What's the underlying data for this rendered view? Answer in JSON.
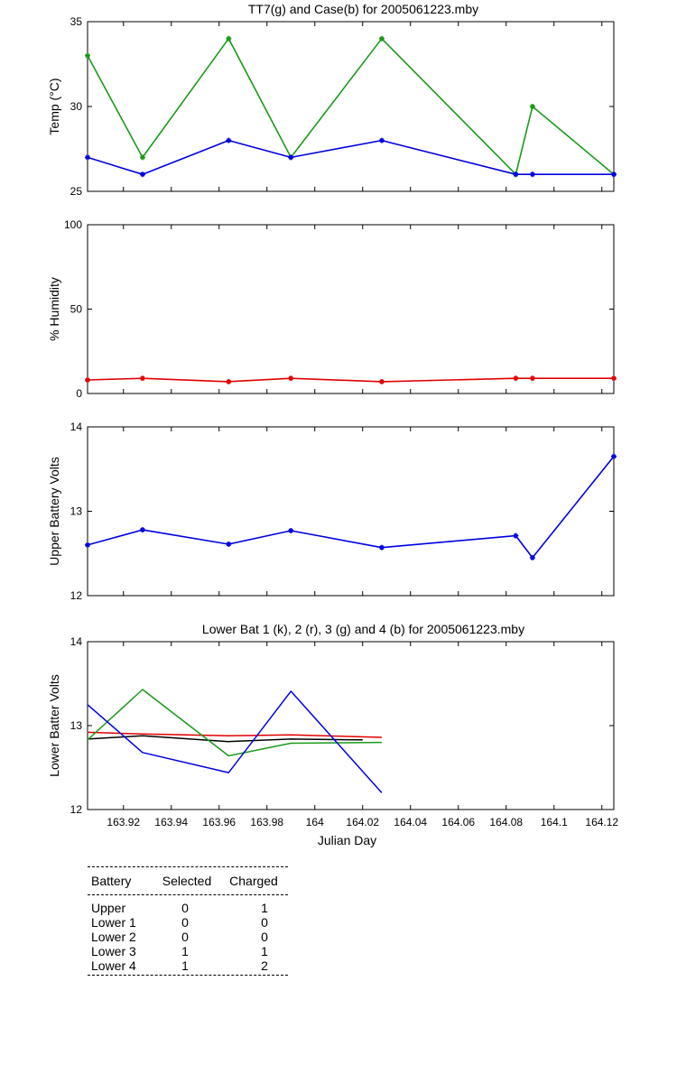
{
  "chart_data": [
    {
      "type": "line",
      "title": "TT7(g) and Case(b) for 2005061223.mby",
      "ylabel": "Temp  (°C)",
      "xlabel": "",
      "xlim": [
        163.905,
        164.125
      ],
      "ylim": [
        25,
        35
      ],
      "yticks": [
        25,
        30,
        35
      ],
      "markers": true,
      "series": [
        {
          "color": "#1a9a1a",
          "x": [
            163.905,
            163.928,
            163.964,
            163.99,
            164.028,
            164.084,
            164.091,
            164.125
          ],
          "y": [
            33,
            27,
            34,
            27,
            34,
            26,
            30,
            26
          ]
        },
        {
          "color": "#0000e0",
          "x": [
            163.905,
            163.928,
            163.964,
            163.99,
            164.028,
            164.084,
            164.091,
            164.125
          ],
          "y": [
            27,
            26,
            28,
            27,
            28,
            26,
            26,
            26
          ]
        }
      ]
    },
    {
      "type": "line",
      "title": "",
      "ylabel": "% Humidity",
      "xlabel": "",
      "xlim": [
        163.905,
        164.125
      ],
      "ylim": [
        0,
        100
      ],
      "yticks": [
        0,
        50,
        100
      ],
      "markers": true,
      "series": [
        {
          "color": "#e00000",
          "x": [
            163.905,
            163.928,
            163.964,
            163.99,
            164.028,
            164.084,
            164.091,
            164.125
          ],
          "y": [
            8,
            9,
            7,
            9,
            7,
            9,
            9,
            9
          ]
        }
      ]
    },
    {
      "type": "line",
      "title": "",
      "ylabel": "Upper Battery Volts",
      "xlabel": "",
      "xlim": [
        163.905,
        164.125
      ],
      "ylim": [
        12,
        14
      ],
      "yticks": [
        12,
        13,
        14
      ],
      "markers": true,
      "series": [
        {
          "color": "#0000e0",
          "x": [
            163.905,
            163.928,
            163.964,
            163.99,
            164.028,
            164.084,
            164.091,
            164.125
          ],
          "y": [
            12.6,
            12.78,
            12.61,
            12.77,
            12.57,
            12.71,
            12.45,
            13.65
          ]
        }
      ]
    },
    {
      "type": "line",
      "title": "Lower Bat 1 (k), 2 (r), 3 (g) and 4 (b) for 2005061223.mby",
      "ylabel": "Lower Batter Volts",
      "xlabel": "Julian Day",
      "xlim": [
        163.905,
        164.125
      ],
      "ylim": [
        12,
        14
      ],
      "yticks": [
        12,
        13,
        14
      ],
      "xticks": [
        163.92,
        163.94,
        163.96,
        163.98,
        164,
        164.02,
        164.04,
        164.06,
        164.08,
        164.1,
        164.12
      ],
      "xticklabels": [
        "163.92",
        "163.94",
        "163.96",
        "163.98",
        "164",
        "164.02",
        "164.04",
        "164.06",
        "164.08",
        "164.1",
        "164.12"
      ],
      "markers": false,
      "series": [
        {
          "color": "#000000",
          "x": [
            163.905,
            163.928,
            163.964,
            163.99,
            164.02
          ],
          "y": [
            12.84,
            12.88,
            12.81,
            12.84,
            12.83
          ]
        },
        {
          "color": "#e00000",
          "x": [
            163.905,
            163.928,
            163.964,
            163.99,
            164.028
          ],
          "y": [
            12.92,
            12.9,
            12.88,
            12.89,
            12.86
          ]
        },
        {
          "color": "#1a9a1a",
          "x": [
            163.905,
            163.928,
            163.964,
            163.99,
            164.028
          ],
          "y": [
            12.83,
            13.43,
            12.64,
            12.79,
            12.8
          ]
        },
        {
          "color": "#0000e0",
          "x": [
            163.905,
            163.928,
            163.964,
            163.99,
            164.028
          ],
          "y": [
            13.25,
            12.68,
            12.44,
            13.41,
            12.2
          ]
        }
      ]
    }
  ],
  "status_table": {
    "headers": [
      "Battery",
      "Selected",
      "Charged"
    ],
    "rows": [
      [
        "Upper",
        "0",
        "1"
      ],
      [
        "Lower 1",
        "0",
        "0"
      ],
      [
        "Lower 2",
        "0",
        "0"
      ],
      [
        "Lower 3",
        "1",
        "1"
      ],
      [
        "Lower 4",
        "1",
        "2"
      ]
    ]
  }
}
